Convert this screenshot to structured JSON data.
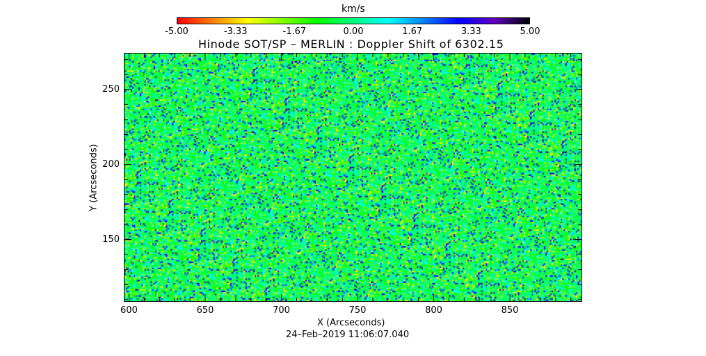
{
  "chart_data": {
    "type": "heatmap",
    "title": "Hinode SOT/SP – MERLIN : Doppler Shift of 6302.15",
    "xlabel": "X (Arcseconds)",
    "ylabel": "Y (Arcseconds)",
    "xlim": [
      597,
      897
    ],
    "ylim": [
      109,
      274
    ],
    "xticks": [
      "600",
      "650",
      "700",
      "750",
      "800",
      "850"
    ],
    "xtick_values": [
      600,
      650,
      700,
      750,
      800,
      850
    ],
    "yticks": [
      "150",
      "200",
      "250"
    ],
    "ytick_values": [
      150,
      200,
      250
    ],
    "colorbar": {
      "label": "km/s",
      "range": [
        -5,
        5
      ],
      "tick_labels": [
        "-5.00",
        "-3.33",
        "-1.67",
        "0.00",
        "1.67",
        "3.33",
        "5.00"
      ],
      "colormap": [
        "#ff0000",
        "#ff8000",
        "#ffff00",
        "#80ff00",
        "#00ff00",
        "#00ff80",
        "#00ffff",
        "#0080ff",
        "#0000ff",
        "#6000c0",
        "#000000"
      ]
    },
    "timestamp": "24–Feb–2019 11:06:07.040"
  }
}
